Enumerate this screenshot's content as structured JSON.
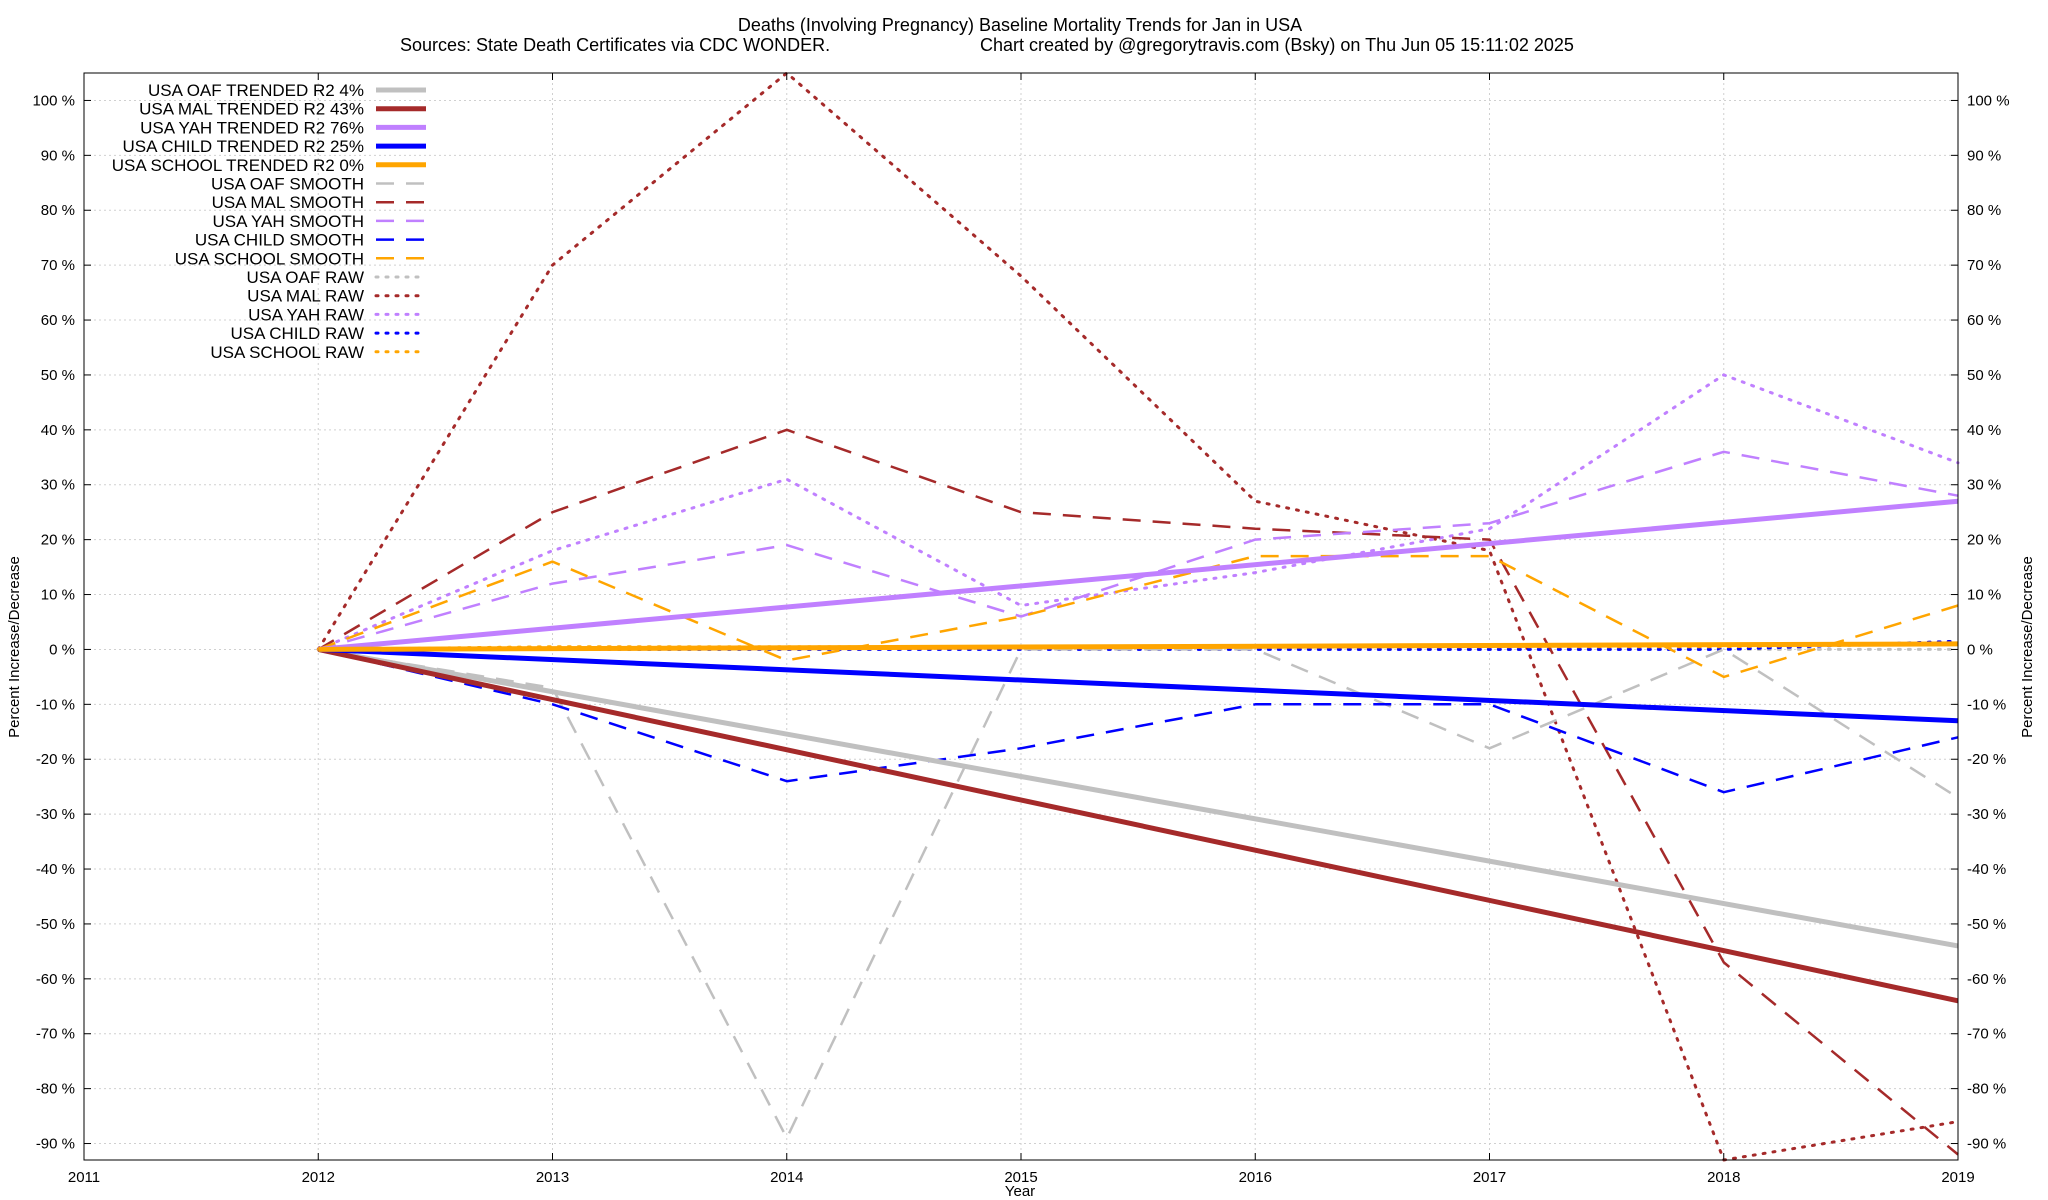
{
  "chart_data": {
    "type": "line",
    "title_line1": "Deaths (Involving Pregnancy)  Baseline Mortality Trends for Jan in USA",
    "title_line2_left": "Sources: State Death Certificates via CDC WONDER.",
    "title_line2_right": "Chart created by @gregorytravis.com (Bsky) on Thu Jun 05 15:11:02 2025",
    "xlabel": "Year",
    "ylabel_left": "Percent Increase/Decrease",
    "ylabel_right": "Percent Increase/Decrease",
    "xlim": [
      2011,
      2019
    ],
    "ylim": [
      -93,
      105
    ],
    "x_ticks": [
      2011,
      2012,
      2013,
      2014,
      2015,
      2016,
      2017,
      2018,
      2019
    ],
    "x_tick_labels": [
      "2011",
      "2012",
      "2013",
      "2014",
      "2015",
      "2016",
      "2017",
      "2018",
      "2019"
    ],
    "y_ticks": [
      100,
      90,
      80,
      70,
      60,
      50,
      40,
      30,
      20,
      10,
      0,
      -10,
      -20,
      -30,
      -40,
      -50,
      -60,
      -70,
      -80,
      -90
    ],
    "y_tick_labels": [
      "100 %",
      "90 %",
      "80 %",
      "70 %",
      "60 %",
      "50 %",
      "40 %",
      "30 %",
      "20 %",
      "10 %",
      "0 %",
      "-10 %",
      "-20 %",
      "-30 %",
      "-40 %",
      "-50 %",
      "-60 %",
      "-70 %",
      "-80 %",
      "-90 %"
    ],
    "grid": true,
    "legend_position": "top-left",
    "series": [
      {
        "name": "USA OAF TRENDED R2   4%",
        "style": "trend",
        "color": "#c0c0c0",
        "x": [
          2012,
          2019
        ],
        "y": [
          0,
          -54
        ]
      },
      {
        "name": "USA MAL TRENDED R2  43%",
        "style": "trend",
        "color": "#a52a2a",
        "x": [
          2012,
          2019
        ],
        "y": [
          0,
          -64
        ]
      },
      {
        "name": "USA YAH TRENDED R2  76%",
        "style": "trend",
        "color": "#c080ff",
        "x": [
          2012,
          2019
        ],
        "y": [
          0,
          27
        ]
      },
      {
        "name": "USA CHILD TRENDED R2  25%",
        "style": "trend",
        "color": "#0000ff",
        "x": [
          2012,
          2019
        ],
        "y": [
          0,
          -13
        ]
      },
      {
        "name": "USA SCHOOL TRENDED R2   0%",
        "style": "trend",
        "color": "#ffa500",
        "x": [
          2012,
          2019
        ],
        "y": [
          0,
          1
        ]
      },
      {
        "name": "USA OAF SMOOTH",
        "style": "smooth",
        "color": "#c0c0c0",
        "x": [
          2012,
          2013,
          2014,
          2015,
          2016,
          2017,
          2018,
          2019
        ],
        "y": [
          0,
          -7,
          -89,
          0,
          0,
          -18,
          0,
          -27
        ]
      },
      {
        "name": "USA MAL SMOOTH",
        "style": "smooth",
        "color": "#a52a2a",
        "x": [
          2012,
          2013,
          2014,
          2015,
          2016,
          2017,
          2018,
          2019
        ],
        "y": [
          0,
          25,
          40,
          25,
          22,
          20,
          -57,
          -92
        ]
      },
      {
        "name": "USA YAH SMOOTH",
        "style": "smooth",
        "color": "#c080ff",
        "x": [
          2012,
          2013,
          2014,
          2015,
          2016,
          2017,
          2018,
          2019
        ],
        "y": [
          0,
          12,
          19,
          6,
          20,
          23,
          36,
          28
        ]
      },
      {
        "name": "USA CHILD SMOOTH",
        "style": "smooth",
        "color": "#0000ff",
        "x": [
          2012,
          2013,
          2014,
          2015,
          2016,
          2017,
          2018,
          2019
        ],
        "y": [
          0,
          -10,
          -24,
          -18,
          -10,
          -10,
          -26,
          -16
        ]
      },
      {
        "name": "USA SCHOOL SMOOTH",
        "style": "smooth",
        "color": "#ffa500",
        "x": [
          2012,
          2013,
          2014,
          2015,
          2016,
          2017,
          2018,
          2019
        ],
        "y": [
          0,
          16,
          -2,
          6,
          17,
          17,
          -5,
          8
        ]
      },
      {
        "name": "USA OAF RAW",
        "style": "raw",
        "color": "#c0c0c0",
        "x": [
          2012,
          2013,
          2014,
          2015,
          2016,
          2017,
          2018,
          2019
        ],
        "y": [
          0,
          0,
          0,
          0,
          0,
          0,
          0,
          0
        ]
      },
      {
        "name": "USA MAL RAW",
        "style": "raw",
        "color": "#a52a2a",
        "x": [
          2012,
          2013,
          2014,
          2015,
          2016,
          2017,
          2018,
          2019
        ],
        "y": [
          0,
          70,
          105,
          68,
          27,
          18,
          -93,
          -86
        ]
      },
      {
        "name": "USA YAH RAW",
        "style": "raw",
        "color": "#c080ff",
        "x": [
          2012,
          2013,
          2014,
          2015,
          2016,
          2017,
          2018,
          2019
        ],
        "y": [
          0,
          18,
          31,
          8,
          14,
          22,
          50,
          34
        ]
      },
      {
        "name": "USA CHILD RAW",
        "style": "raw",
        "color": "#0000ff",
        "x": [
          2012,
          2013,
          2014,
          2015,
          2016,
          2017,
          2018,
          2019
        ],
        "y": [
          0,
          0,
          0,
          0,
          0,
          0,
          0,
          1.5
        ]
      },
      {
        "name": "USA SCHOOL RAW",
        "style": "raw",
        "color": "#ffa500",
        "x": [
          2012,
          2013,
          2014,
          2015,
          2016,
          2017,
          2018,
          2019
        ],
        "y": [
          0,
          0.5,
          0.5,
          0.5,
          0.5,
          0.5,
          0.5,
          1
        ]
      }
    ]
  }
}
